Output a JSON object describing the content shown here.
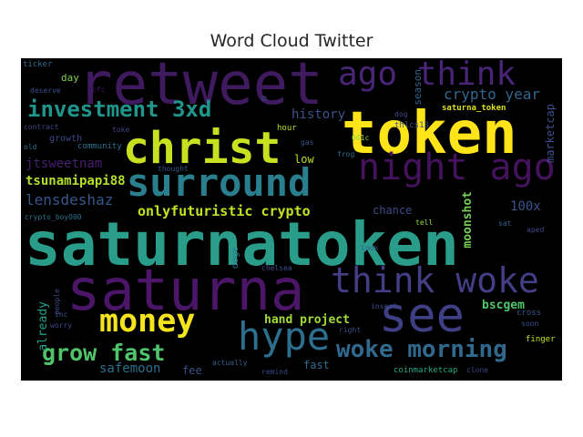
{
  "title": "Word Cloud Twitter",
  "palette": {
    "background": "#000000",
    "colormap": "viridis"
  },
  "words": [
    {
      "text": "saturnatoken",
      "color": "#2a9d8a"
    },
    {
      "text": "token",
      "color": "#ffe41a"
    },
    {
      "text": "retweet",
      "color": "#3f1a5e"
    },
    {
      "text": "christ",
      "color": "#c7e020"
    },
    {
      "text": "saturna",
      "color": "#4b1668"
    },
    {
      "text": "see",
      "color": "#3f3f86"
    },
    {
      "text": "night ago",
      "color": "#45125d"
    },
    {
      "text": "surround",
      "color": "#2a7f8e"
    },
    {
      "text": "think woke",
      "color": "#433e85"
    },
    {
      "text": "hype",
      "color": "#2c6f8e"
    },
    {
      "text": "money",
      "color": "#f5e31d"
    },
    {
      "text": "ago think",
      "color": "#482576"
    },
    {
      "text": "investment 3xd",
      "color": "#1f958b"
    },
    {
      "text": "woke morning",
      "color": "#30688e"
    },
    {
      "text": "grow fast",
      "color": "#50c46a"
    },
    {
      "text": "crypto year",
      "color": "#31668e"
    },
    {
      "text": "onlyfuturistic crypto",
      "color": "#c5e021"
    },
    {
      "text": "history",
      "color": "#3b528b"
    },
    {
      "text": "lensdeshaz",
      "color": "#39568c"
    },
    {
      "text": "tsunamipapi88",
      "color": "#b5de2b"
    },
    {
      "text": "jtsweetnam",
      "color": "#481f70"
    },
    {
      "text": "safemoon",
      "color": "#2d708e"
    },
    {
      "text": "hand project",
      "color": "#a2da37"
    },
    {
      "text": "day",
      "color": "#7ad151"
    },
    {
      "text": "growth",
      "color": "#3f4889"
    },
    {
      "text": "community",
      "color": "#2b748e"
    },
    {
      "text": "moonshot",
      "color": "#75d054"
    },
    {
      "text": "chance",
      "color": "#3e4989"
    },
    {
      "text": "100x",
      "color": "#3a548c"
    },
    {
      "text": "fast",
      "color": "#2f6c8e"
    },
    {
      "text": "fee",
      "color": "#3b518b"
    },
    {
      "text": "low",
      "color": "#bddf26"
    },
    {
      "text": "bscgem",
      "color": "#52c569"
    },
    {
      "text": "already",
      "color": "#1fa088"
    },
    {
      "text": "marketcap",
      "color": "#3c4f8a"
    },
    {
      "text": "season",
      "color": "#33638d"
    },
    {
      "text": "saturna_token",
      "color": "#dde318"
    },
    {
      "text": "thlcs13",
      "color": "#3a548c"
    },
    {
      "text": "ticker",
      "color": "#2e6d8e"
    },
    {
      "text": "deserve",
      "color": "#3b518b"
    },
    {
      "text": "cfc",
      "color": "#481467"
    },
    {
      "text": "toke",
      "color": "#404688"
    },
    {
      "text": "contract",
      "color": "#414487"
    },
    {
      "text": "old",
      "color": "#2c718e"
    },
    {
      "text": "hour",
      "color": "#b8de29"
    },
    {
      "text": "gas",
      "color": "#3a548c"
    },
    {
      "text": "001c",
      "color": "#90d743"
    },
    {
      "text": "frog",
      "color": "#2d708e"
    },
    {
      "text": "dog",
      "color": "#3e4989"
    },
    {
      "text": "m",
      "color": "#3f4788"
    },
    {
      "text": "thought",
      "color": "#38588c"
    },
    {
      "text": "crypto_boy000",
      "color": "#2c728e"
    },
    {
      "text": "doge",
      "color": "#2a788e"
    },
    {
      "text": "chelsea",
      "color": "#3d4e8a"
    },
    {
      "text": "look",
      "color": "#39568c"
    },
    {
      "text": "tell",
      "color": "#95d840"
    },
    {
      "text": "sat",
      "color": "#35608d"
    },
    {
      "text": "aped",
      "color": "#3f4889"
    },
    {
      "text": "people",
      "color": "#3f4889"
    },
    {
      "text": "worry",
      "color": "#404588"
    },
    {
      "text": "inc",
      "color": "#3b528b"
    },
    {
      "text": "insert",
      "color": "#3d4d8a"
    },
    {
      "text": "right",
      "color": "#3d4d8a"
    },
    {
      "text": "soon",
      "color": "#3b528b"
    },
    {
      "text": "cross",
      "color": "#38598c"
    },
    {
      "text": "finger",
      "color": "#c5e021"
    },
    {
      "text": "actually",
      "color": "#35608d"
    },
    {
      "text": "remind",
      "color": "#3e4a89"
    },
    {
      "text": "coinmarketcap",
      "color": "#22a884"
    },
    {
      "text": "clone",
      "color": "#404588"
    }
  ]
}
